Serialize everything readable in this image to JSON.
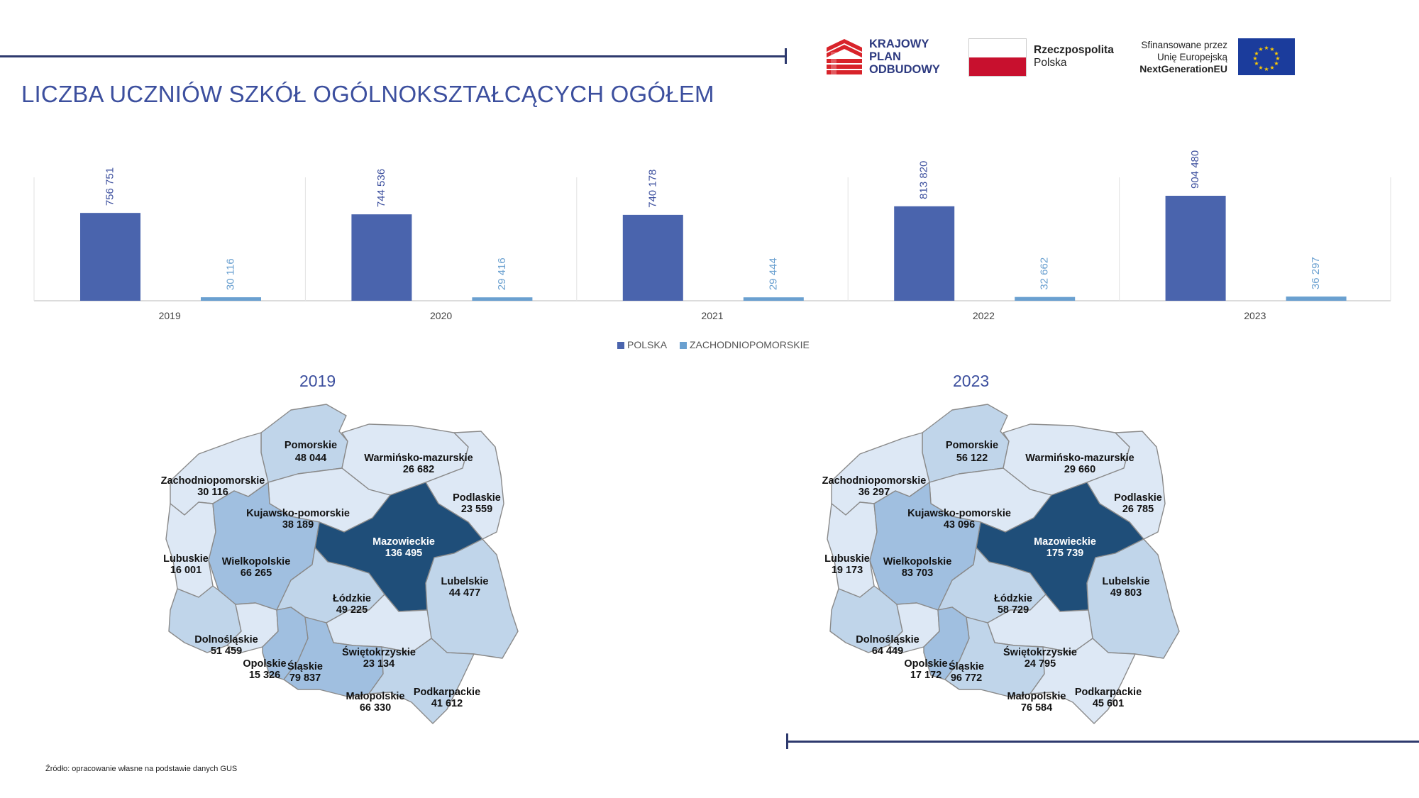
{
  "title": "LICZBA UCZNIÓW SZKÓŁ OGÓLNOKSZTAŁCĄCYCH OGÓŁEM",
  "logos": {
    "kpo": [
      "KRAJOWY",
      "PLAN",
      "ODBUDOWY"
    ],
    "rp": [
      "Rzeczpospolita",
      "Polska"
    ],
    "eu": [
      "Sfinansowane przez",
      "Unię Europejską",
      "NextGenerationEU"
    ]
  },
  "colors": {
    "polska": "#4a64ad",
    "zachodniopomorskie": "#6aa0d0",
    "accent": "#2e3a6e",
    "map_level_1": "#dde8f5",
    "map_level_2": "#c0d5ea",
    "map_level_3": "#a0bfe0",
    "map_level_4": "#1f4e79"
  },
  "chart_data": {
    "type": "bar",
    "categories": [
      "2019",
      "2020",
      "2021",
      "2022",
      "2023"
    ],
    "series": [
      {
        "name": "POLSKA",
        "values": [
          756751,
          744536,
          740178,
          813820,
          904480
        ],
        "labels": [
          "756 751",
          "744 536",
          "740 178",
          "813 820",
          "904 480"
        ]
      },
      {
        "name": "ZACHODNIOPOMORSKIE",
        "values": [
          30116,
          29416,
          29444,
          32662,
          36297
        ],
        "labels": [
          "30 116",
          "29 416",
          "29 444",
          "32 662",
          "36 297"
        ]
      }
    ],
    "grid": false,
    "legend": "bottom-center"
  },
  "maps": [
    {
      "year": "2019",
      "regions": [
        {
          "name": "Pomorskie",
          "value": "48 044",
          "level": 2
        },
        {
          "name": "Warmińsko-mazurskie",
          "value": "26 682",
          "level": 1
        },
        {
          "name": "Zachodniopomorskie",
          "value": "30 116",
          "level": 1
        },
        {
          "name": "Podlaskie",
          "value": "23 559",
          "level": 1
        },
        {
          "name": "Kujawsko-pomorskie",
          "value": "38 189",
          "level": 1
        },
        {
          "name": "Mazowieckie",
          "value": "136 495",
          "level": 4
        },
        {
          "name": "Lubuskie",
          "value": "16 001",
          "level": 1
        },
        {
          "name": "Wielkopolskie",
          "value": "66 265",
          "level": 3
        },
        {
          "name": "Łódzkie",
          "value": "49 225",
          "level": 2
        },
        {
          "name": "Lubelskie",
          "value": "44 477",
          "level": 2
        },
        {
          "name": "Dolnośląskie",
          "value": "51 459",
          "level": 2
        },
        {
          "name": "Opolskie",
          "value": "15 326",
          "level": 1
        },
        {
          "name": "Śląskie",
          "value": "79 837",
          "level": 3
        },
        {
          "name": "Świętokrzyskie",
          "value": "23 134",
          "level": 1
        },
        {
          "name": "Małopolskie",
          "value": "66 330",
          "level": 3
        },
        {
          "name": "Podkarpackie",
          "value": "41 612",
          "level": 2
        }
      ]
    },
    {
      "year": "2023",
      "regions": [
        {
          "name": "Pomorskie",
          "value": "56 122",
          "level": 2
        },
        {
          "name": "Warmińsko-mazurskie",
          "value": "29 660",
          "level": 1
        },
        {
          "name": "Zachodniopomorskie",
          "value": "36 297",
          "level": 1
        },
        {
          "name": "Podlaskie",
          "value": "26 785",
          "level": 1
        },
        {
          "name": "Kujawsko-pomorskie",
          "value": "43 096",
          "level": 1
        },
        {
          "name": "Mazowieckie",
          "value": "175 739",
          "level": 4
        },
        {
          "name": "Lubuskie",
          "value": "19 173",
          "level": 1
        },
        {
          "name": "Wielkopolskie",
          "value": "83 703",
          "level": 3
        },
        {
          "name": "Łódzkie",
          "value": "58 729",
          "level": 2
        },
        {
          "name": "Lubelskie",
          "value": "49 803",
          "level": 2
        },
        {
          "name": "Dolnośląskie",
          "value": "64 449",
          "level": 2
        },
        {
          "name": "Opolskie",
          "value": "17 172",
          "level": 1
        },
        {
          "name": "Śląskie",
          "value": "96 772",
          "level": 3
        },
        {
          "name": "Świętokrzyskie",
          "value": "24 795",
          "level": 1
        },
        {
          "name": "Małopolskie",
          "value": "76 584",
          "level": 2
        },
        {
          "name": "Podkarpackie",
          "value": "45 601",
          "level": 1
        }
      ]
    }
  ],
  "source": "Źródło: opracowanie własne na podstawie danych GUS"
}
